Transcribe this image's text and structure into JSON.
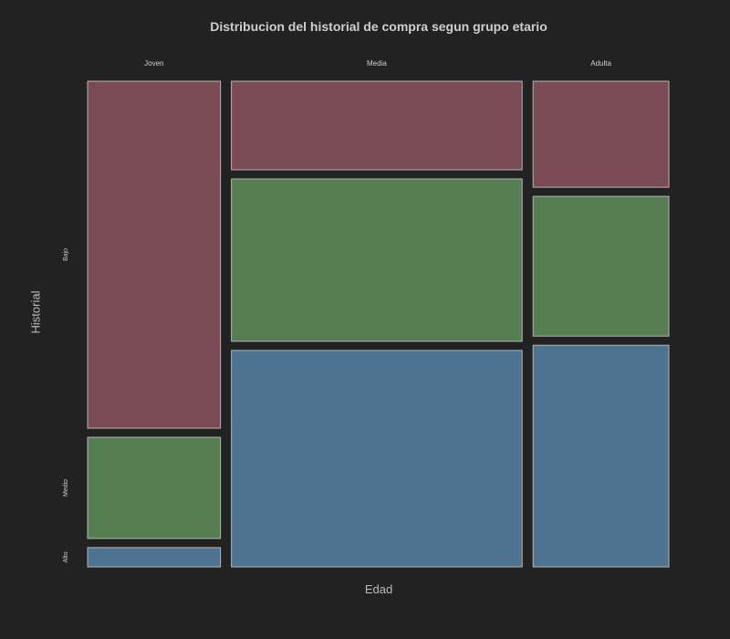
{
  "chart_data": {
    "type": "mosaic",
    "title": "Distribucion del historial de compra segun grupo etario",
    "xlabel": "Edad",
    "ylabel": "Historial",
    "x_categories": [
      "Joven",
      "Media",
      "Adulta"
    ],
    "y_categories": [
      "Bajo",
      "Medio",
      "Alto"
    ],
    "column_widths": [
      0.229,
      0.501,
      0.234
    ],
    "proportions": {
      "Joven": {
        "Bajo": 0.72,
        "Medio": 0.21,
        "Alto": 0.04
      },
      "Media": {
        "Bajo": 0.18,
        "Medio": 0.33,
        "Alto": 0.44
      },
      "Adulta": {
        "Bajo": 0.22,
        "Medio": 0.29,
        "Alto": 0.46
      }
    },
    "colors": {
      "Bajo": "#7b4b55",
      "Medio": "#577d52",
      "Alto": "#4d7390"
    },
    "background": "#222222",
    "border_color": "#b5b5b5",
    "grid": false
  }
}
